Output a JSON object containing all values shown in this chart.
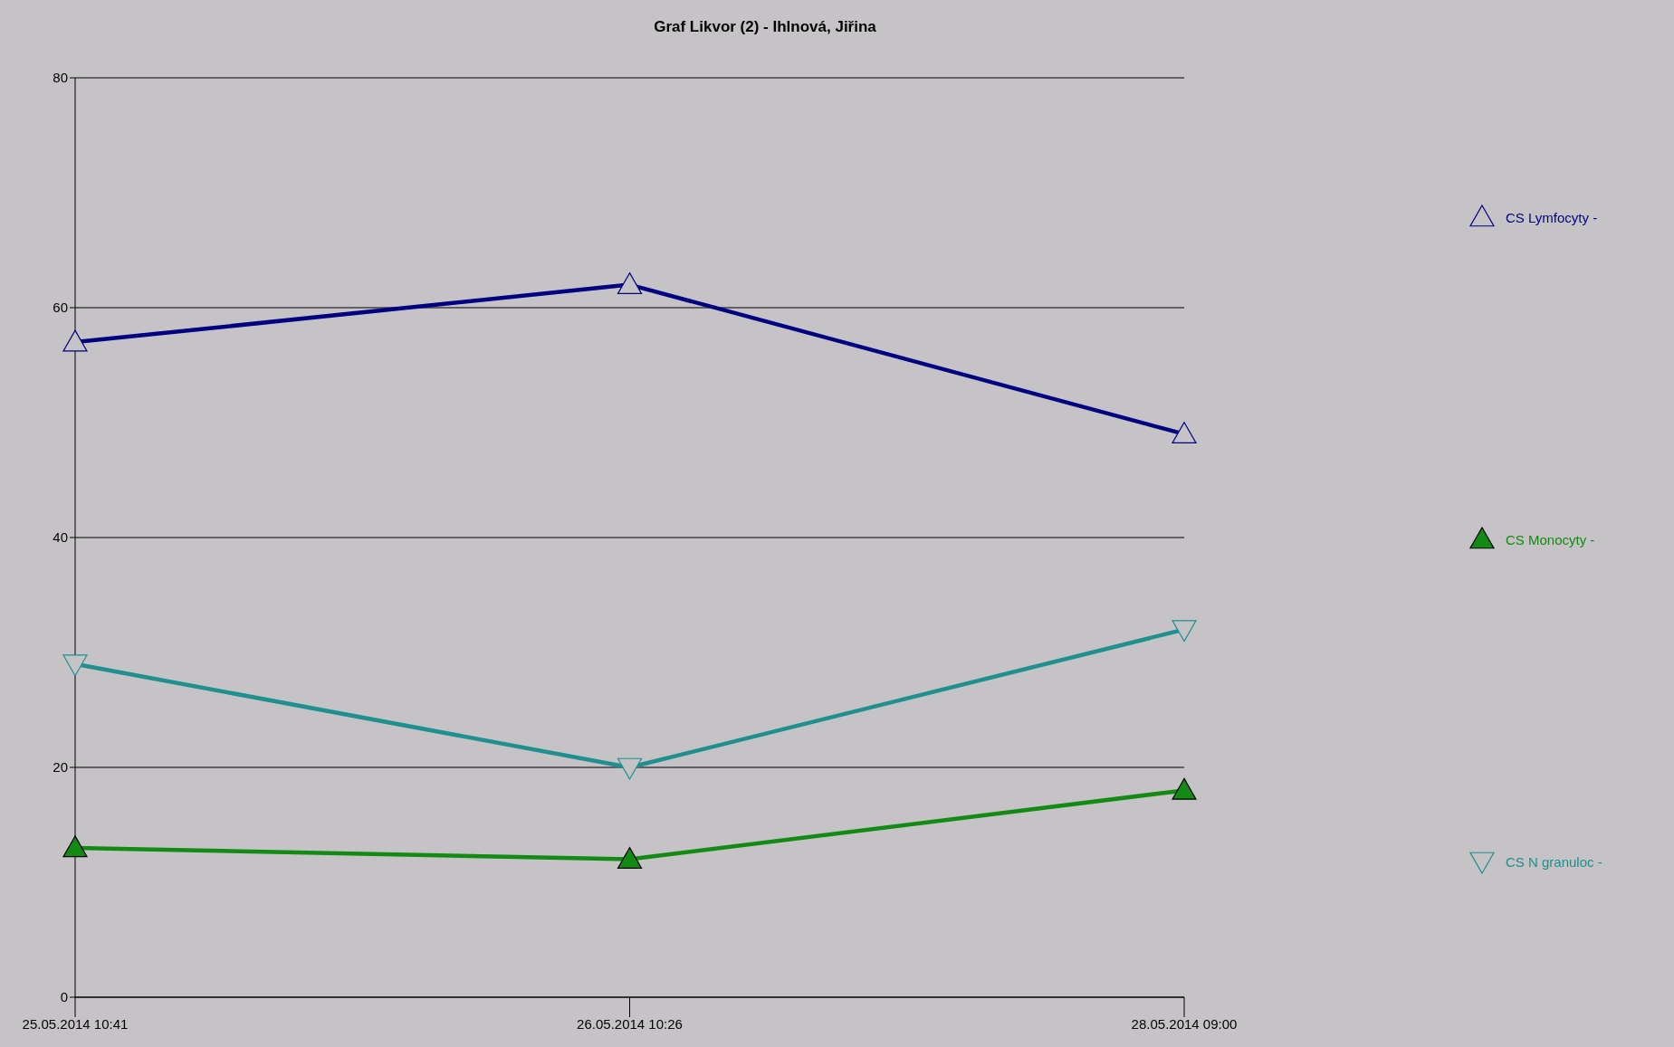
{
  "chart_data": {
    "type": "line",
    "title": "Graf Likvor (2) - Ihlnová,  Jiřina",
    "categories": [
      "25.05.2014 10:41",
      "26.05.2014 10:26",
      "28.05.2014 09:00"
    ],
    "series": [
      {
        "name": "CS Lymfocyty -",
        "color": "#000080",
        "marker": "triangle",
        "values": [
          57,
          62,
          49
        ]
      },
      {
        "name": "CS Monocyty -",
        "color": "#138a13",
        "marker": "triangle",
        "values": [
          13,
          12,
          18
        ]
      },
      {
        "name": "CS N granuloc -",
        "color": "#1f8f8f",
        "marker": "triangle-down",
        "values": [
          29,
          20,
          32
        ]
      }
    ],
    "ylim": [
      0,
      80
    ],
    "yticks": [
      0,
      20,
      40,
      60,
      80
    ],
    "grid": "y",
    "legend": "right"
  }
}
